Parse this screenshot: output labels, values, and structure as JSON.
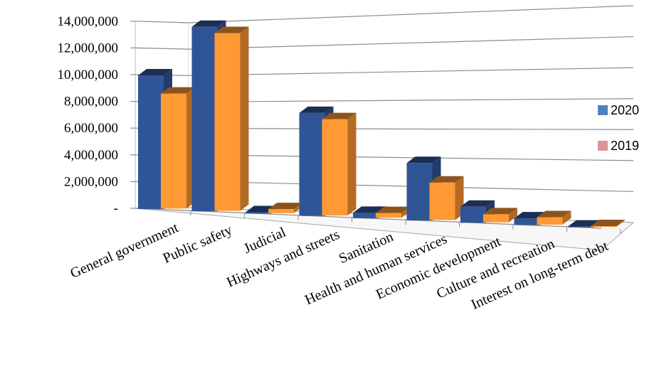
{
  "chart_data": {
    "type": "bar",
    "title": "",
    "xlabel": "",
    "ylabel": "",
    "ylim": [
      0,
      14000000
    ],
    "yticks": [
      {
        "value": 0,
        "label": "-"
      },
      {
        "value": 2000000,
        "label": "2,000,000"
      },
      {
        "value": 4000000,
        "label": "4,000,000"
      },
      {
        "value": 6000000,
        "label": "6,000,000"
      },
      {
        "value": 8000000,
        "label": "8,000,000"
      },
      {
        "value": 10000000,
        "label": "10,000,000"
      },
      {
        "value": 12000000,
        "label": "12,000,000"
      },
      {
        "value": 14000000,
        "label": "14,000,000"
      }
    ],
    "categories": [
      "General government",
      "Public safety",
      "Judicial",
      "Highways and streets",
      "Sanitation",
      "Health and human services",
      "Economic development",
      "Culture and recreation",
      "Interest on long-term debt"
    ],
    "series": [
      {
        "name": "2020",
        "color": "#2f5597",
        "values": [
          10000000,
          13800000,
          100000,
          7700000,
          400000,
          4300000,
          1200000,
          500000,
          60000
        ]
      },
      {
        "name": "2019",
        "color": "#ff9933",
        "values": [
          8600000,
          13300000,
          300000,
          7200000,
          350000,
          2800000,
          600000,
          550000,
          60000
        ]
      }
    ],
    "legend_position": "right",
    "grid": true,
    "style": "3d-column"
  },
  "legend": {
    "items": [
      {
        "label": "2020",
        "swatch": "#4f81bd"
      },
      {
        "label": "2019",
        "swatch": "#d99694"
      }
    ]
  }
}
